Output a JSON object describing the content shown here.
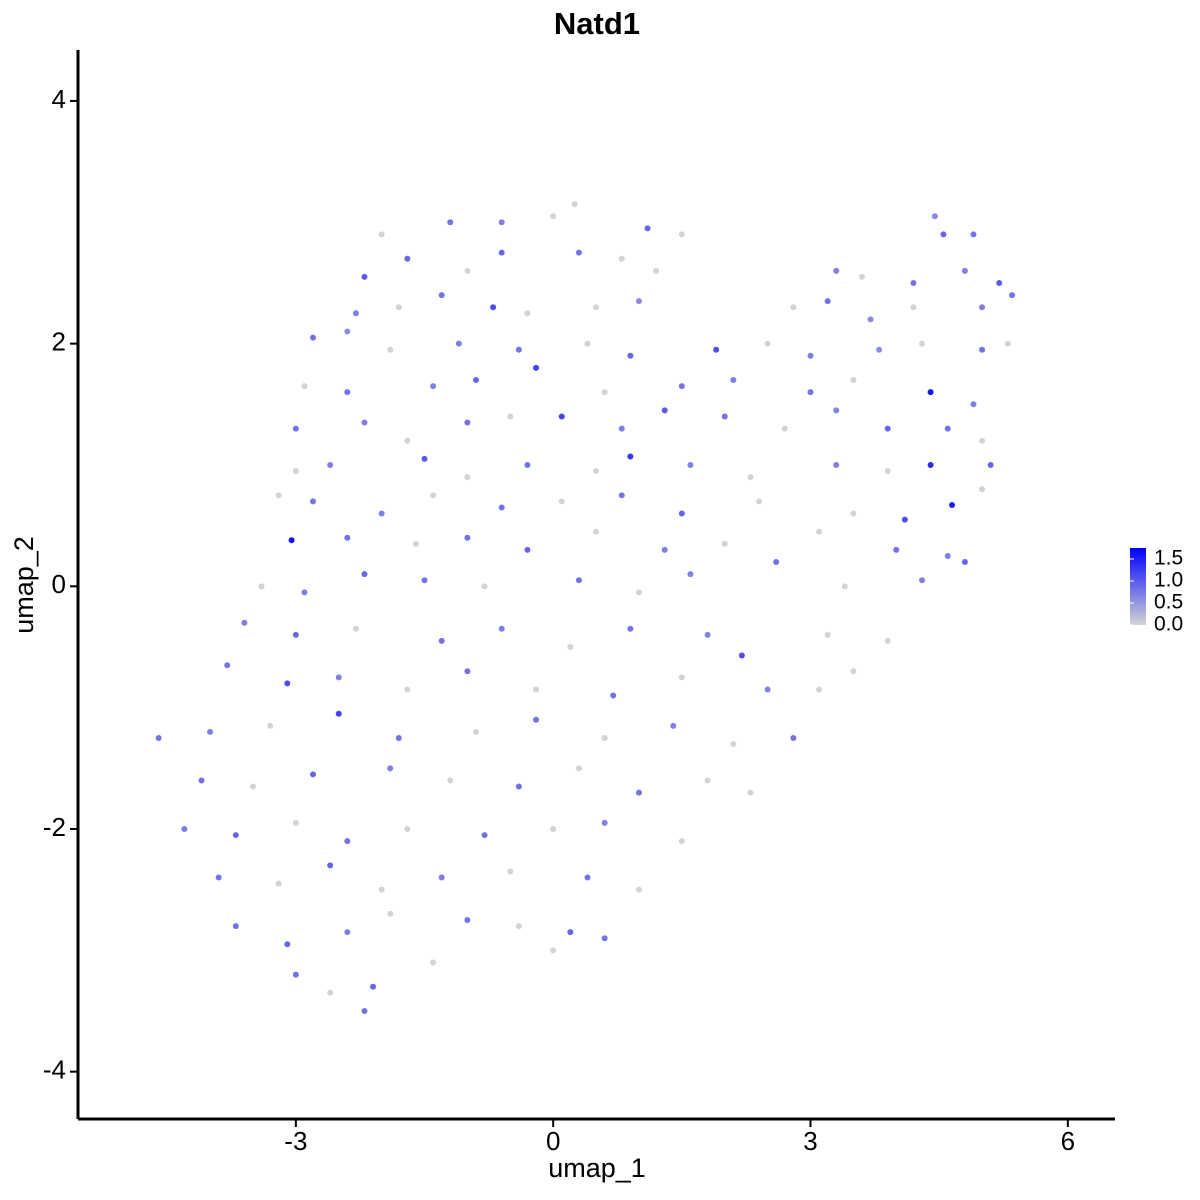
{
  "chart_data": {
    "type": "scatter",
    "title": "Natd1",
    "xlabel": "umap_1",
    "ylabel": "umap_2",
    "xlim": [
      -5.54,
      6.55
    ],
    "ylim": [
      -4.39,
      4.42
    ],
    "xticks": [
      -3,
      0,
      3,
      6
    ],
    "yticks": [
      -4,
      -2,
      0,
      2,
      4
    ],
    "colors": [
      "#d3d3d3",
      "#0000ff"
    ],
    "clim": [
      0,
      1.75
    ],
    "legend_ticks": [
      {
        "value": 0,
        "label": "0.0"
      },
      0.5,
      {
        "value": 1,
        "label": "1.0"
      },
      1.5
    ],
    "x": [
      -2.0,
      -1.2,
      -0.6,
      0.0,
      0.25,
      1.1,
      1.5,
      4.45,
      4.55,
      4.9,
      -2.2,
      -1.7,
      -1.0,
      -0.6,
      0.3,
      0.8,
      1.2,
      3.3,
      3.6,
      4.2,
      4.8,
      5.2,
      -2.3,
      -1.8,
      -1.3,
      -0.7,
      -0.3,
      0.5,
      1.0,
      2.8,
      3.2,
      3.7,
      4.2,
      5.0,
      5.35,
      -2.8,
      -2.4,
      -1.9,
      -1.1,
      -0.4,
      0.4,
      0.9,
      1.9,
      2.5,
      3.0,
      3.8,
      4.3,
      5.0,
      5.3,
      -2.9,
      -2.4,
      -1.4,
      -0.9,
      -0.2,
      0.6,
      1.5,
      2.1,
      3.0,
      3.5,
      4.4,
      4.9,
      -3.0,
      -2.2,
      -1.7,
      -1.0,
      -0.5,
      0.1,
      0.8,
      1.3,
      2.0,
      2.7,
      3.3,
      3.9,
      4.6,
      5.0,
      -3.0,
      -2.6,
      -1.5,
      -1.0,
      -0.3,
      0.5,
      0.9,
      1.6,
      2.3,
      3.3,
      3.9,
      4.4,
      5.1,
      -3.2,
      -2.8,
      -2.0,
      -1.4,
      -0.6,
      0.1,
      0.8,
      1.5,
      2.4,
      3.5,
      4.1,
      4.65,
      5.0,
      -3.05,
      -2.4,
      -1.6,
      -1.0,
      -0.3,
      0.5,
      1.3,
      2.0,
      3.1,
      4.0,
      4.6,
      -3.4,
      -2.9,
      -2.2,
      -1.5,
      -0.8,
      0.3,
      1.0,
      1.6,
      2.6,
      3.4,
      4.3,
      4.8,
      -3.6,
      -3.0,
      -2.3,
      -1.3,
      -0.6,
      0.2,
      0.9,
      1.8,
      2.2,
      3.2,
      3.9,
      -3.8,
      -3.1,
      -2.5,
      -1.7,
      -1.0,
      -0.2,
      0.7,
      1.5,
      2.5,
      3.1,
      3.5,
      -4.6,
      -4.0,
      -3.3,
      -2.5,
      -1.8,
      -0.9,
      -0.2,
      0.6,
      1.4,
      2.1,
      2.8,
      -4.1,
      -3.5,
      -2.8,
      -1.9,
      -1.2,
      -0.4,
      0.3,
      1.0,
      1.8,
      2.3,
      -4.3,
      -3.7,
      -3.0,
      -2.4,
      -1.7,
      -0.8,
      0.0,
      0.6,
      1.5,
      -3.9,
      -3.2,
      -2.6,
      -2.0,
      -1.3,
      -0.5,
      0.4,
      1.0,
      -3.7,
      -3.1,
      -2.4,
      -1.9,
      -1.0,
      -0.4,
      0.2,
      0.6,
      -3.0,
      -2.6,
      -2.1,
      -2.2,
      -1.4,
      0.0
    ],
    "y": [
      2.9,
      3.0,
      3.0,
      3.05,
      3.15,
      2.95,
      2.9,
      3.05,
      2.9,
      2.9,
      2.55,
      2.7,
      2.6,
      2.75,
      2.75,
      2.7,
      2.6,
      2.6,
      2.55,
      2.5,
      2.6,
      2.5,
      2.25,
      2.3,
      2.4,
      2.3,
      2.25,
      2.3,
      2.35,
      2.3,
      2.35,
      2.2,
      2.3,
      2.3,
      2.4,
      2.05,
      2.1,
      1.95,
      2.0,
      1.95,
      2.0,
      1.9,
      1.95,
      2.0,
      1.9,
      1.95,
      2.0,
      1.95,
      2.0,
      1.65,
      1.6,
      1.65,
      1.7,
      1.8,
      1.6,
      1.65,
      1.7,
      1.6,
      1.7,
      1.6,
      1.5,
      1.3,
      1.35,
      1.2,
      1.35,
      1.4,
      1.4,
      1.3,
      1.45,
      1.4,
      1.3,
      1.45,
      1.3,
      1.3,
      1.2,
      0.95,
      1.0,
      1.05,
      0.9,
      1.0,
      0.95,
      1.07,
      1.0,
      0.9,
      1.0,
      0.95,
      1.0,
      1.0,
      0.75,
      0.7,
      0.6,
      0.75,
      0.65,
      0.7,
      0.75,
      0.6,
      0.7,
      0.6,
      0.55,
      0.67,
      0.8,
      0.38,
      0.4,
      0.35,
      0.4,
      0.3,
      0.45,
      0.3,
      0.35,
      0.45,
      0.3,
      0.25,
      0.0,
      -0.05,
      0.1,
      0.05,
      0.0,
      0.05,
      -0.05,
      0.1,
      0.2,
      0.0,
      0.05,
      0.2,
      -0.3,
      -0.4,
      -0.35,
      -0.45,
      -0.35,
      -0.5,
      -0.35,
      -0.4,
      -0.57,
      -0.4,
      -0.45,
      -0.65,
      -0.8,
      -0.75,
      -0.85,
      -0.7,
      -0.85,
      -0.9,
      -0.75,
      -0.85,
      -0.85,
      -0.7,
      -1.25,
      -1.2,
      -1.15,
      -1.05,
      -1.25,
      -1.2,
      -1.1,
      -1.25,
      -1.15,
      -1.3,
      -1.25,
      -1.6,
      -1.65,
      -1.55,
      -1.5,
      -1.6,
      -1.65,
      -1.5,
      -1.7,
      -1.6,
      -1.7,
      -2.0,
      -2.05,
      -1.95,
      -2.1,
      -2.0,
      -2.05,
      -2.0,
      -1.95,
      -2.1,
      -2.4,
      -2.45,
      -2.3,
      -2.5,
      -2.4,
      -2.35,
      -2.4,
      -2.5,
      -2.8,
      -2.95,
      -2.85,
      -2.7,
      -2.75,
      -2.8,
      -2.85,
      -2.9,
      -3.2,
      -3.35,
      -3.3,
      -3.5,
      -3.1,
      -3.0
    ],
    "values": [
      0,
      0.8,
      0.7,
      0,
      0,
      0.9,
      0,
      0.6,
      0.9,
      0.8,
      1.0,
      0.9,
      0,
      0.9,
      0.8,
      0,
      0,
      0.7,
      0,
      0.8,
      0.7,
      1.0,
      0.7,
      0,
      0.8,
      1.1,
      0,
      0,
      0.6,
      0,
      0.8,
      0.6,
      0,
      0.7,
      0.8,
      0.8,
      0.6,
      0,
      0.7,
      0.8,
      0,
      0.9,
      1.1,
      0,
      0.7,
      0.6,
      0,
      0.8,
      0,
      0,
      0.8,
      0.7,
      0.9,
      1.2,
      0,
      0.8,
      0.7,
      0.8,
      0,
      1.6,
      0.7,
      0.8,
      0.7,
      0,
      0.8,
      0,
      1.2,
      0.7,
      1.0,
      0.8,
      0,
      0.7,
      0.9,
      0.8,
      0,
      0,
      0.7,
      1.0,
      0,
      0.8,
      0,
      1.3,
      0.7,
      0,
      0.7,
      0,
      1.4,
      0.9,
      0,
      0.8,
      0.7,
      0,
      0.8,
      0,
      0.8,
      0.9,
      0,
      0,
      1.1,
      1.5,
      0,
      1.6,
      0.8,
      0,
      0.8,
      0.9,
      0,
      0.7,
      0,
      0,
      0.8,
      0.7,
      0,
      0.7,
      0.9,
      0.8,
      0,
      0.8,
      0,
      0.7,
      0.8,
      0,
      0.7,
      0.9,
      0.7,
      0.9,
      0,
      0.8,
      0.7,
      0,
      0.8,
      0.7,
      1.1,
      0,
      0,
      0.8,
      1.1,
      0.7,
      0,
      0.8,
      0,
      0.8,
      0,
      0.7,
      0,
      0,
      0.8,
      0.7,
      0,
      1.2,
      0.8,
      0,
      0.8,
      0,
      0.7,
      0,
      0.8,
      0.8,
      0,
      0.9,
      0.7,
      0,
      0.8,
      0,
      0.8,
      0,
      0,
      0.7,
      0.9,
      0,
      0.8,
      0,
      0.8,
      0,
      0.7,
      0,
      0.8,
      0,
      0.9,
      0,
      0.7,
      0,
      0.8,
      0,
      0.8,
      0.9,
      0.7,
      0,
      0.8,
      0,
      0.9,
      0.8,
      0.8,
      0,
      0.9,
      0.8,
      0,
      0
    ]
  }
}
